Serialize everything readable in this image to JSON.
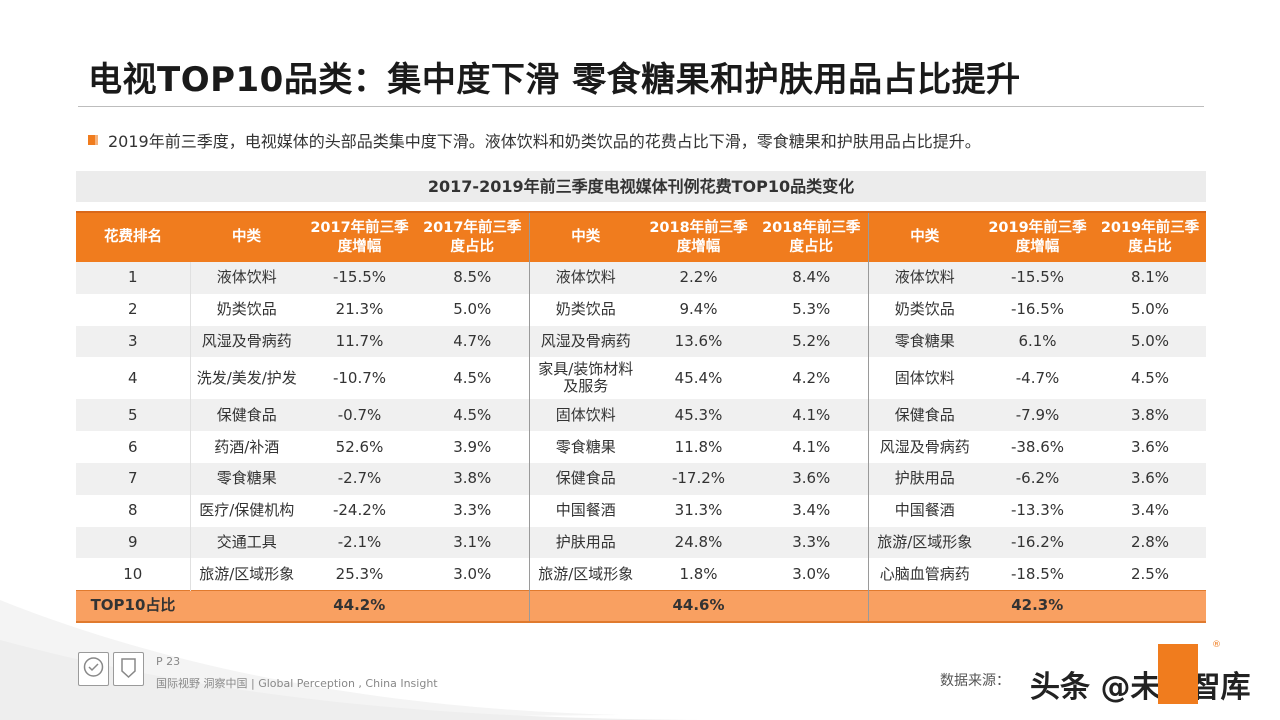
{
  "title": "电视TOP10品类：集中度下滑 零食糖果和护肤用品占比提升",
  "bullet": "2019年前三季度，电视媒体的头部品类集中度下滑。液体饮料和奶类饮品的花费占比下滑，零食糖果和护肤用品占比提升。",
  "table_title": "2017-2019年前三季度电视媒体刊例花费TOP10品类变化",
  "headers": {
    "rank": "花费排名",
    "cat": "中类",
    "g2017_growth": "2017年前三季度增幅",
    "g2017_share": "2017年前三季度占比",
    "g2018_growth": "2018年前三季度增幅",
    "g2018_share": "2018年前三季度占比",
    "g2019_growth": "2019年前三季度增幅",
    "g2019_share": "2019年前三季度占比"
  },
  "rows": [
    {
      "rank": "1",
      "c17": "液体饮料",
      "gr17": "-15.5%",
      "sh17": "8.5%",
      "c18": "液体饮料",
      "gr18": "2.2%",
      "sh18": "8.4%",
      "c19": "液体饮料",
      "gr19": "-15.5%",
      "sh19": "8.1%"
    },
    {
      "rank": "2",
      "c17": "奶类饮品",
      "gr17": "21.3%",
      "sh17": "5.0%",
      "c18": "奶类饮品",
      "gr18": "9.4%",
      "sh18": "5.3%",
      "c19": "奶类饮品",
      "gr19": "-16.5%",
      "sh19": "5.0%"
    },
    {
      "rank": "3",
      "c17": "风湿及骨病药",
      "gr17": "11.7%",
      "sh17": "4.7%",
      "c18": "风湿及骨病药",
      "gr18": "13.6%",
      "sh18": "5.2%",
      "c19": "零食糖果",
      "gr19": "6.1%",
      "sh19": "5.0%"
    },
    {
      "rank": "4",
      "c17": "洗发/美发/护发",
      "gr17": "-10.7%",
      "sh17": "4.5%",
      "c18": "家具/装饰材料及服务",
      "gr18": "45.4%",
      "sh18": "4.2%",
      "c19": "固体饮料",
      "gr19": "-4.7%",
      "sh19": "4.5%"
    },
    {
      "rank": "5",
      "c17": "保健食品",
      "gr17": "-0.7%",
      "sh17": "4.5%",
      "c18": "固体饮料",
      "gr18": "45.3%",
      "sh18": "4.1%",
      "c19": "保健食品",
      "gr19": "-7.9%",
      "sh19": "3.8%"
    },
    {
      "rank": "6",
      "c17": "药酒/补酒",
      "gr17": "52.6%",
      "sh17": "3.9%",
      "c18": "零食糖果",
      "gr18": "11.8%",
      "sh18": "4.1%",
      "c19": "风湿及骨病药",
      "gr19": "-38.6%",
      "sh19": "3.6%"
    },
    {
      "rank": "7",
      "c17": "零食糖果",
      "gr17": "-2.7%",
      "sh17": "3.8%",
      "c18": "保健食品",
      "gr18": "-17.2%",
      "sh18": "3.6%",
      "c19": "护肤用品",
      "gr19": "-6.2%",
      "sh19": "3.6%"
    },
    {
      "rank": "8",
      "c17": "医疗/保健机构",
      "gr17": "-24.2%",
      "sh17": "3.3%",
      "c18": "中国餐酒",
      "gr18": "31.3%",
      "sh18": "3.4%",
      "c19": "中国餐酒",
      "gr19": "-13.3%",
      "sh19": "3.4%"
    },
    {
      "rank": "9",
      "c17": "交通工具",
      "gr17": "-2.1%",
      "sh17": "3.1%",
      "c18": "护肤用品",
      "gr18": "24.8%",
      "sh18": "3.3%",
      "c19": "旅游/区域形象",
      "gr19": "-16.2%",
      "sh19": "2.8%"
    },
    {
      "rank": "10",
      "c17": "旅游/区域形象",
      "gr17": "25.3%",
      "sh17": "3.0%",
      "c18": "旅游/区域形象",
      "gr18": "1.8%",
      "sh18": "3.0%",
      "c19": "心脑血管病药",
      "gr19": "-18.5%",
      "sh19": "2.5%"
    }
  ],
  "total": {
    "label": "TOP10占比",
    "v17": "44.2%",
    "v18": "44.6%",
    "v19": "42.3%"
  },
  "footer": {
    "page": "P 23",
    "slogan": "国际视野  洞察中国 |  Global Perception , China Insight",
    "source": "数据来源：",
    "watermark_overlay": "头条 @未来智库",
    "registered": "®"
  },
  "colors": {
    "accent": "#f07c1e",
    "total_row": "#f9a061",
    "zebra": "#f0f0f0"
  }
}
